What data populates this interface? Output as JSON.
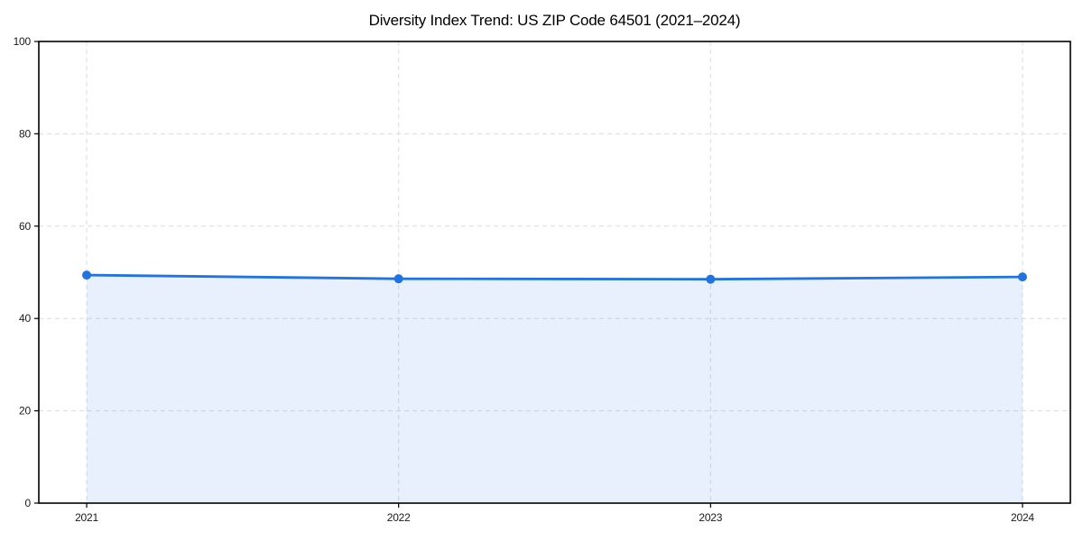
{
  "chart_data": {
    "type": "line",
    "title": "Diversity Index Trend: US ZIP Code 64501 (2021–2024)",
    "categories": [
      "2021",
      "2022",
      "2023",
      "2024"
    ],
    "series": [
      {
        "name": "Diversity Index",
        "values": [
          49.4,
          48.6,
          48.5,
          49.0
        ]
      }
    ],
    "xlabel": "",
    "ylabel": "",
    "ylim": [
      0,
      100
    ],
    "yticks": [
      0,
      20,
      40,
      60,
      80,
      100
    ],
    "grid": "dashed",
    "legend": "none",
    "area_fill": true,
    "marker": "circle",
    "colors": {
      "line": "#2173e2",
      "marker": "#2173e2",
      "area": "rgba(33, 115, 226, 0.11)",
      "grid": "#dcdcdc",
      "axis": "#000000",
      "text": "#1a1a1a",
      "background": "#ffffff"
    }
  }
}
